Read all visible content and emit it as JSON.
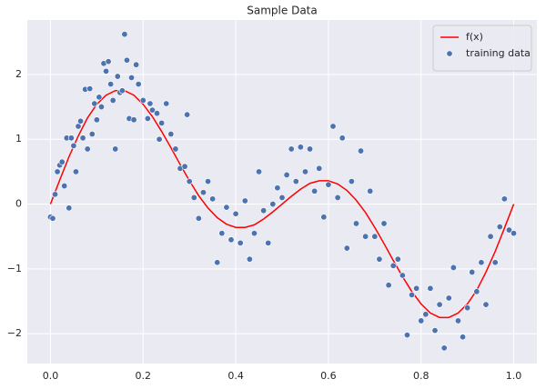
{
  "chart_data": {
    "type": "line",
    "title": "Sample Data",
    "xlim": [
      -0.05,
      1.05
    ],
    "ylim": [
      -2.46,
      2.84
    ],
    "xticks": [
      {
        "value": 0,
        "label": "0.0"
      },
      0.2,
      0.4,
      0.6,
      0.8,
      {
        "value": 1,
        "label": "1.0"
      }
    ],
    "yticks": [
      {
        "value": -2,
        "label": "−2"
      },
      {
        "value": -1,
        "label": "−1"
      },
      0,
      1,
      2
    ],
    "grid": true,
    "background": "#eaeaf2",
    "legend": "upper right",
    "series": [
      {
        "name": "f(x)",
        "type": "line",
        "color": "#ff0000",
        "x": [
          0,
          0.02,
          0.04,
          0.06,
          0.08,
          0.1,
          0.12,
          0.14,
          0.16,
          0.18,
          0.2,
          0.22,
          0.24,
          0.26,
          0.28,
          0.3,
          0.32,
          0.34,
          0.36,
          0.38,
          0.4,
          0.42,
          0.44,
          0.46,
          0.48,
          0.5,
          0.52,
          0.54,
          0.56,
          0.58,
          0.6,
          0.62,
          0.64,
          0.66,
          0.68,
          0.7,
          0.72,
          0.74,
          0.76,
          0.78,
          0.8,
          0.82,
          0.84,
          0.86,
          0.88,
          0.9,
          0.92,
          0.94,
          0.96,
          0.98,
          1
        ],
        "values": [
          0,
          0.37,
          0.73,
          1.05,
          1.33,
          1.54,
          1.68,
          1.75,
          1.75,
          1.68,
          1.54,
          1.35,
          1.12,
          0.87,
          0.61,
          0.36,
          0.13,
          -0.06,
          -0.21,
          -0.31,
          -0.36,
          -0.36,
          -0.32,
          -0.23,
          -0.12,
          0,
          0.12,
          0.23,
          0.32,
          0.36,
          0.36,
          0.31,
          0.21,
          0.06,
          -0.13,
          -0.36,
          -0.61,
          -0.87,
          -1.12,
          -1.35,
          -1.54,
          -1.68,
          -1.75,
          -1.75,
          -1.68,
          -1.54,
          -1.33,
          -1.05,
          -0.73,
          -0.37,
          0
        ]
      },
      {
        "name": "training data",
        "type": "scatter",
        "color": "#4c72b0",
        "x": [
          0,
          0.005,
          0.01,
          0.015,
          0.02,
          0.025,
          0.03,
          0.035,
          0.04,
          0.045,
          0.05,
          0.055,
          0.06,
          0.065,
          0.07,
          0.075,
          0.08,
          0.085,
          0.09,
          0.095,
          0.1,
          0.105,
          0.11,
          0.115,
          0.12,
          0.125,
          0.13,
          0.135,
          0.14,
          0.145,
          0.15,
          0.155,
          0.16,
          0.165,
          0.17,
          0.175,
          0.18,
          0.185,
          0.19,
          0.2,
          0.21,
          0.215,
          0.22,
          0.23,
          0.235,
          0.24,
          0.25,
          0.26,
          0.27,
          0.28,
          0.29,
          0.295,
          0.3,
          0.31,
          0.32,
          0.33,
          0.34,
          0.35,
          0.36,
          0.37,
          0.38,
          0.39,
          0.4,
          0.41,
          0.42,
          0.43,
          0.44,
          0.45,
          0.46,
          0.47,
          0.48,
          0.49,
          0.5,
          0.51,
          0.52,
          0.53,
          0.54,
          0.55,
          0.56,
          0.57,
          0.58,
          0.59,
          0.6,
          0.61,
          0.62,
          0.63,
          0.64,
          0.65,
          0.66,
          0.67,
          0.68,
          0.69,
          0.7,
          0.71,
          0.72,
          0.73,
          0.74,
          0.75,
          0.76,
          0.77,
          0.78,
          0.79,
          0.8,
          0.81,
          0.82,
          0.83,
          0.84,
          0.85,
          0.86,
          0.87,
          0.88,
          0.89,
          0.9,
          0.91,
          0.92,
          0.93,
          0.94,
          0.95,
          0.96,
          0.97,
          0.98,
          0.99,
          1
        ],
        "values": [
          -0.2,
          -0.22,
          0.15,
          0.5,
          0.6,
          0.65,
          0.28,
          1.02,
          -0.06,
          1.02,
          0.9,
          0.5,
          1.2,
          1.28,
          1.02,
          1.77,
          0.85,
          1.78,
          1.08,
          1.55,
          1.3,
          1.65,
          1.5,
          2.17,
          2.05,
          2.2,
          1.85,
          1.6,
          0.85,
          1.97,
          1.72,
          1.75,
          2.62,
          2.22,
          1.32,
          1.95,
          1.3,
          2.15,
          1.85,
          1.6,
          1.32,
          1.55,
          1.45,
          1.4,
          1.0,
          1.25,
          1.55,
          1.08,
          0.85,
          0.55,
          0.58,
          1.38,
          0.35,
          0.1,
          -0.22,
          0.18,
          0.35,
          0.08,
          -0.9,
          -0.45,
          -0.05,
          -0.55,
          -0.15,
          -0.6,
          0.05,
          -0.85,
          -0.45,
          0.5,
          -0.1,
          -0.6,
          0.0,
          0.25,
          0.1,
          0.45,
          0.85,
          0.35,
          0.88,
          0.5,
          0.85,
          0.2,
          0.55,
          -0.2,
          0.3,
          1.2,
          0.1,
          1.02,
          -0.68,
          0.35,
          -0.3,
          0.82,
          -0.5,
          0.2,
          -0.5,
          -0.85,
          -0.3,
          -1.25,
          -0.95,
          -0.85,
          -1.1,
          -2.02,
          -1.4,
          -1.3,
          -1.8,
          -1.7,
          -1.3,
          -1.95,
          -1.55,
          -2.22,
          -1.45,
          -0.98,
          -1.8,
          -2.05,
          -1.6,
          -1.05,
          -1.35,
          -0.9,
          -1.55,
          -0.5,
          -0.9,
          -0.35,
          0.08,
          -0.4,
          -0.45
        ]
      }
    ]
  }
}
